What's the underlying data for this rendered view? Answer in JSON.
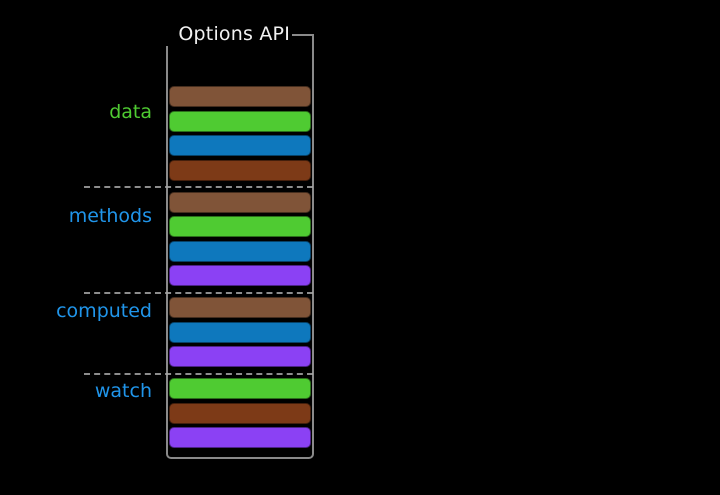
{
  "title": "Options API",
  "colors": {
    "background": "#000000",
    "box_border": "#8a8a8a",
    "separator": "#a6a6a6",
    "title_text": "#f2f2f2",
    "label_green": "#4fcb32",
    "label_blue": "#2095ea",
    "palette": {
      "brown": "#805438",
      "green": "#4fcb32",
      "blue": "#0e78bd",
      "dark_brown": "#7d3a17",
      "purple": "#8b41f4"
    }
  },
  "sections": [
    {
      "label": "data",
      "label_color": "#4fcb32",
      "bars": [
        "brown",
        "green",
        "blue",
        "dark_brown"
      ]
    },
    {
      "label": "methods",
      "label_color": "#2095ea",
      "bars": [
        "brown",
        "green",
        "blue",
        "purple"
      ]
    },
    {
      "label": "computed",
      "label_color": "#2095ea",
      "bars": [
        "brown",
        "blue",
        "purple"
      ]
    },
    {
      "label": "watch",
      "label_color": "#2095ea",
      "bars": [
        "green",
        "dark_brown",
        "purple"
      ]
    }
  ]
}
